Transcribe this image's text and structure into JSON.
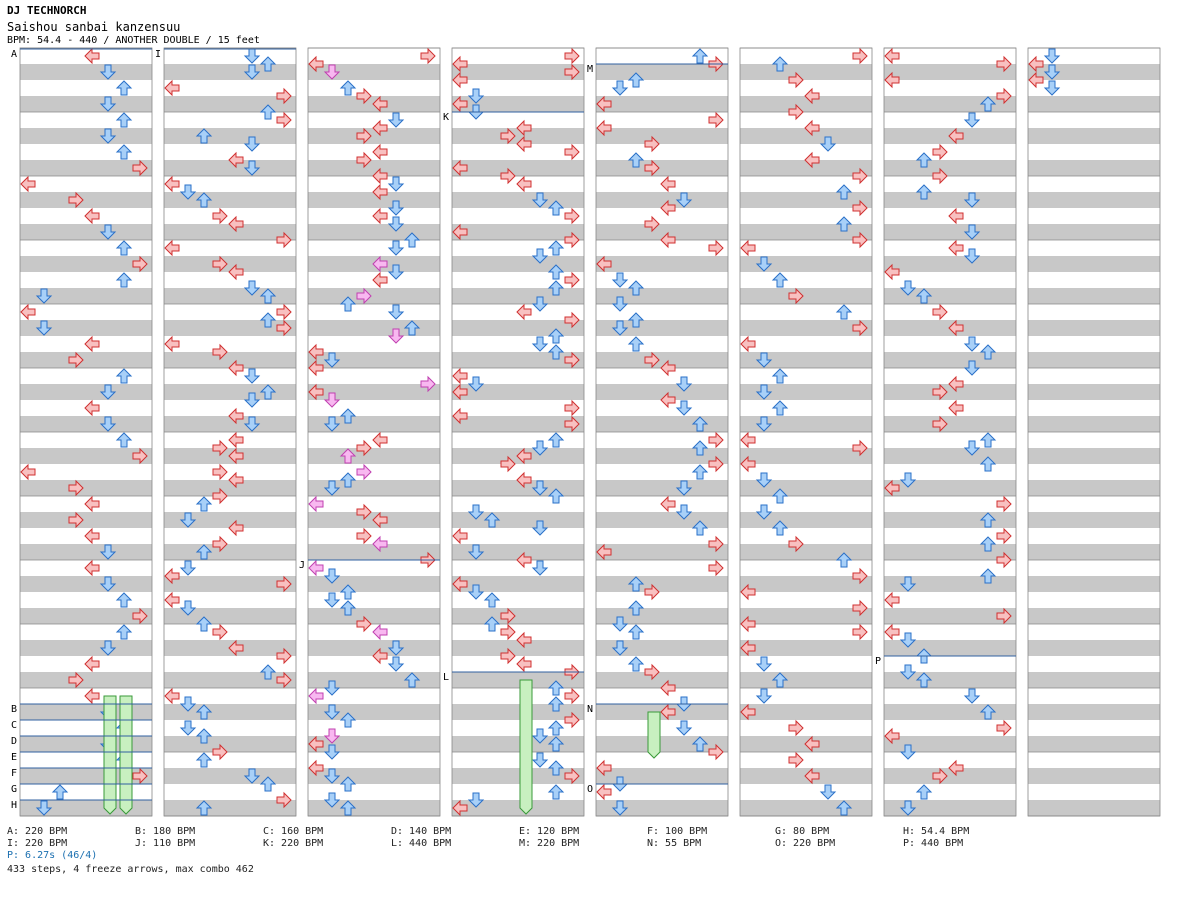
{
  "header": {
    "artist": "DJ TECHNORCH",
    "title": "Saishou sanbai kanzensuu",
    "meta": "BPM: 54.4 - 440 / ANOTHER DOUBLE / 15 feet"
  },
  "colors": {
    "red_arrow": "#f8c0c0",
    "red_stroke": "#d03030",
    "blue_arrow": "#a8d0f8",
    "blue_stroke": "#2a70c8",
    "shock_arrow": "#f8b8f0",
    "freeze": "#c8f0c0",
    "freeze_stroke": "#3a9a3a",
    "band": "#c8c8c8",
    "bpm_line": "#3060a0"
  },
  "markers": [
    "A",
    "B",
    "C",
    "D",
    "E",
    "F",
    "G",
    "H",
    "I",
    "J",
    "K",
    "L",
    "M",
    "N",
    "O",
    "P"
  ],
  "legend": [
    {
      "id": "A",
      "text": "A: 220 BPM"
    },
    {
      "id": "B",
      "text": "B: 180 BPM"
    },
    {
      "id": "C",
      "text": "C: 160 BPM"
    },
    {
      "id": "D",
      "text": "D: 140 BPM"
    },
    {
      "id": "E",
      "text": "E: 120 BPM"
    },
    {
      "id": "F",
      "text": "F: 100 BPM"
    },
    {
      "id": "G",
      "text": "G: 80 BPM"
    },
    {
      "id": "H",
      "text": "H: 54.4 BPM"
    },
    {
      "id": "I",
      "text": "I: 220 BPM"
    },
    {
      "id": "J",
      "text": "J: 110 BPM"
    },
    {
      "id": "K",
      "text": "K: 220 BPM"
    },
    {
      "id": "L",
      "text": "L: 440 BPM"
    },
    {
      "id": "M",
      "text": "M: 220 BPM"
    },
    {
      "id": "N",
      "text": "N: 55 BPM"
    },
    {
      "id": "O",
      "text": "O: 220 BPM"
    },
    {
      "id": "P",
      "text": "P: 440 BPM"
    }
  ],
  "stop_info": "P: 6.27s (46/4)",
  "summary": "433 steps, 4 freeze arrows, max combo 462",
  "chart_data": {
    "type": "table",
    "columns": 8,
    "lanes_per_column": 8,
    "measures_per_column": 12,
    "steps": 433,
    "freeze_arrows": 4,
    "max_combo": 462
  }
}
